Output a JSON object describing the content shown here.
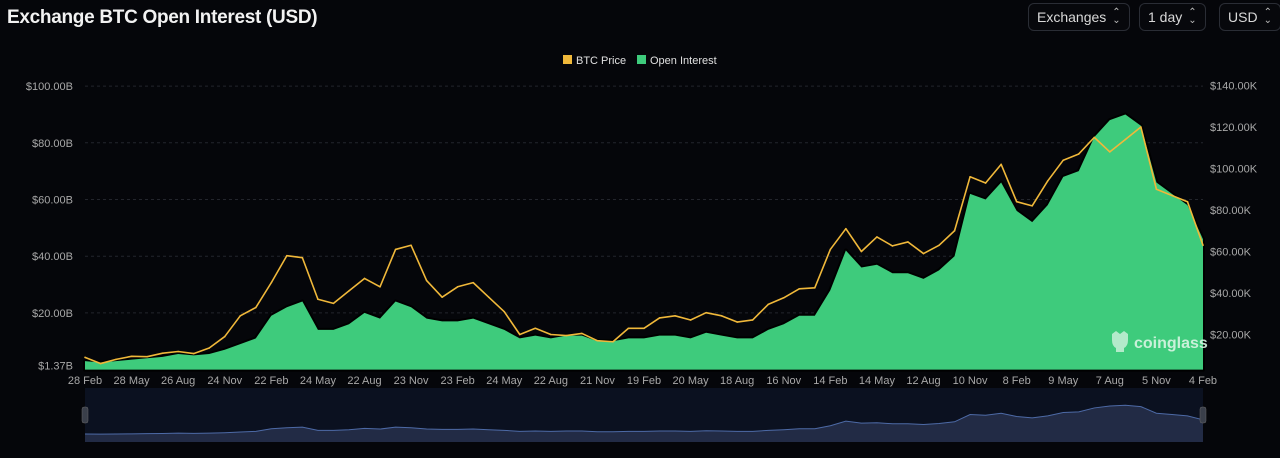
{
  "header": {
    "title": "Exchange BTC Open Interest (USD)"
  },
  "controls": [
    {
      "label": "Exchanges",
      "icon": "chevron-up-down-icon"
    },
    {
      "label": "1 day",
      "icon": "chevron-up-down-icon"
    },
    {
      "label": "USD",
      "icon": "chevron-up-down-icon"
    }
  ],
  "watermark": "coinglass",
  "chart_data": {
    "type": "area+line",
    "title": "Exchange BTC Open Interest (USD)",
    "legend_position": "top-center",
    "grid": true,
    "series": [
      {
        "name": "BTC Price",
        "type": "line",
        "axis": "right",
        "color": "#f0b83a"
      },
      {
        "name": "Open Interest",
        "type": "area",
        "axis": "left",
        "color": "#3ecb7c"
      }
    ],
    "months": [
      "2020-02",
      "2020-03",
      "2020-04",
      "2020-05",
      "2020-06",
      "2020-07",
      "2020-08",
      "2020-09",
      "2020-10",
      "2020-11",
      "2020-12",
      "2021-01",
      "2021-02",
      "2021-03",
      "2021-04",
      "2021-05",
      "2021-06",
      "2021-07",
      "2021-08",
      "2021-09",
      "2021-10",
      "2021-11",
      "2021-12",
      "2022-01",
      "2022-02",
      "2022-03",
      "2022-04",
      "2022-05",
      "2022-06",
      "2022-07",
      "2022-08",
      "2022-09",
      "2022-10",
      "2022-11",
      "2022-12",
      "2023-01",
      "2023-02",
      "2023-03",
      "2023-04",
      "2023-05",
      "2023-06",
      "2023-07",
      "2023-08",
      "2023-09",
      "2023-10",
      "2023-11",
      "2023-12",
      "2024-01",
      "2024-02",
      "2024-03",
      "2024-04",
      "2024-05",
      "2024-06",
      "2024-07",
      "2024-08",
      "2024-09",
      "2024-10",
      "2024-11",
      "2024-12",
      "2025-01",
      "2025-02",
      "2025-03",
      "2025-04",
      "2025-05",
      "2025-06",
      "2025-07",
      "2025-08",
      "2025-09",
      "2025-10",
      "2025-11",
      "2025-12",
      "2026-01",
      "2026-02"
    ],
    "btc_price_usd": [
      9000,
      6000,
      8000,
      9500,
      9300,
      11000,
      11800,
      10800,
      13500,
      19000,
      29000,
      33000,
      45000,
      58000,
      57000,
      37000,
      35000,
      41000,
      47000,
      43000,
      61000,
      63000,
      46000,
      38000,
      43000,
      45000,
      38000,
      31000,
      20000,
      23000,
      20000,
      19500,
      20500,
      17000,
      16500,
      23000,
      23000,
      28000,
      29000,
      27000,
      30500,
      29000,
      26000,
      27000,
      34500,
      37700,
      42000,
      42500,
      61000,
      71000,
      60000,
      67000,
      62700,
      64600,
      59000,
      63000,
      70000,
      96000,
      93000,
      102000,
      84000,
      82000,
      94000,
      104000,
      107000,
      115000,
      108000,
      114000,
      120000,
      90000,
      87000,
      84000,
      63000
    ],
    "open_interest_busd": [
      3,
      2.5,
      3,
      3.5,
      4,
      4.5,
      5.5,
      5,
      5.5,
      7,
      9,
      11,
      19,
      22,
      24,
      14,
      14,
      16,
      20,
      18,
      24,
      22,
      18,
      17,
      17,
      18,
      16,
      14,
      11,
      12,
      11,
      12,
      12,
      10,
      10,
      11,
      11,
      12,
      12,
      11,
      13,
      12,
      11,
      11,
      14,
      16,
      19,
      19,
      28,
      42,
      36,
      37,
      34,
      34,
      32,
      35,
      40,
      62,
      60,
      66,
      56,
      52,
      58,
      68,
      70,
      82,
      88,
      90,
      86,
      66,
      62,
      58,
      46
    ],
    "x_ticks": [
      "28 Feb",
      "28 May",
      "26 Aug",
      "24 Nov",
      "22 Feb",
      "24 May",
      "22 Aug",
      "23 Nov",
      "23 Feb",
      "24 May",
      "22 Aug",
      "21 Nov",
      "19 Feb",
      "20 May",
      "18 Aug",
      "16 Nov",
      "14 Feb",
      "14 May",
      "12 Aug",
      "10 Nov",
      "8 Feb",
      "9 May",
      "7 Aug",
      "5 Nov",
      "4 Feb"
    ],
    "left_axis": {
      "ticks": [
        "$100.00B",
        "$80.00B",
        "$60.00B",
        "$40.00B",
        "$20.00B",
        "$1.37B"
      ],
      "values": [
        100,
        80,
        60,
        40,
        20,
        1.37
      ],
      "range": [
        0,
        100
      ]
    },
    "right_axis": {
      "ticks": [
        "$140.00K",
        "$120.00K",
        "$100.00K",
        "$80.00K",
        "$60.00K",
        "$40.00K",
        "$20.00K"
      ],
      "values": [
        140000,
        120000,
        100000,
        80000,
        60000,
        40000,
        20000
      ],
      "range": [
        0,
        140000
      ]
    }
  }
}
